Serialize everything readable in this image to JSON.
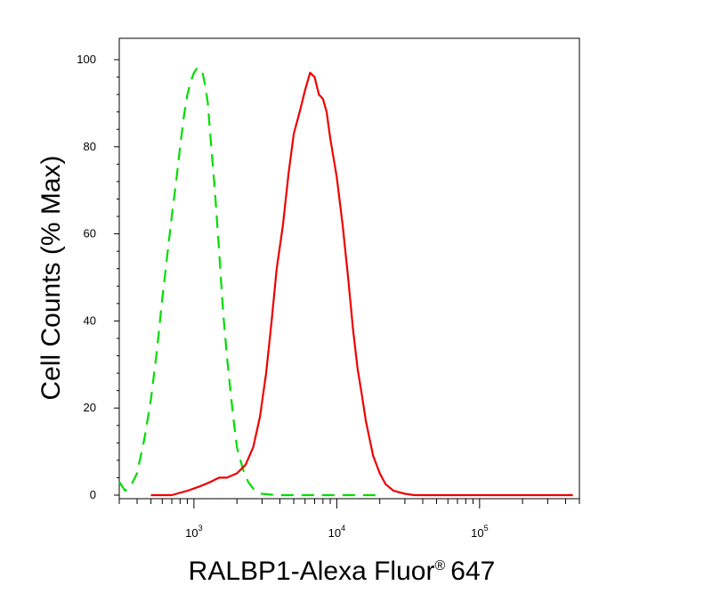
{
  "chart_data": {
    "type": "line",
    "title": "",
    "xlabel": "RALBP1-Alexa Fluor",
    "xlabel_mark": "®",
    "xlabel_suffix": "647",
    "ylabel": "Cell Counts (% Max)",
    "x_scale": "log",
    "xlim": [
      300,
      500000
    ],
    "ylim": [
      0,
      100
    ],
    "grid": false,
    "x_ticks": [
      {
        "value": 1000,
        "base": "10",
        "exp": "3"
      },
      {
        "value": 10000,
        "base": "10",
        "exp": "4"
      },
      {
        "value": 100000,
        "base": "10",
        "exp": "5"
      }
    ],
    "y_ticks": [
      0,
      20,
      40,
      60,
      80,
      100
    ],
    "series": [
      {
        "color": "#00dd00",
        "dash": true,
        "x": [
          300,
          330,
          360,
          400,
          450,
          500,
          550,
          600,
          650,
          700,
          750,
          800,
          850,
          900,
          950,
          1000,
          1050,
          1100,
          1150,
          1200,
          1250,
          1300,
          1400,
          1500,
          1600,
          1700,
          1800,
          1900,
          2000,
          2200,
          2400,
          2600,
          2800,
          3000,
          3500,
          4000,
          6000,
          10000,
          20000
        ],
        "values": [
          3,
          1,
          2,
          5,
          13,
          22,
          33,
          45,
          55,
          64,
          72,
          80,
          87,
          92,
          95,
          97,
          98,
          98,
          97,
          94,
          90,
          83,
          70,
          56,
          42,
          32,
          24,
          17,
          11,
          6,
          3,
          1.5,
          0.6,
          0.3,
          0.1,
          0,
          0,
          0,
          0
        ]
      },
      {
        "color": "#ee0000",
        "dash": false,
        "x": [
          500,
          700,
          900,
          1100,
          1300,
          1500,
          1700,
          2000,
          2300,
          2600,
          2900,
          3200,
          3500,
          3800,
          4200,
          4600,
          5000,
          5500,
          6000,
          6500,
          7000,
          7500,
          8000,
          8500,
          9000,
          10000,
          11000,
          12000,
          13000,
          14000,
          15000,
          16000,
          18000,
          20000,
          22000,
          25000,
          30000,
          35000,
          50000,
          100000,
          200000,
          450000
        ],
        "values": [
          0,
          0,
          1,
          2,
          3,
          4,
          4,
          5,
          7,
          11,
          18,
          28,
          40,
          52,
          62,
          74,
          83,
          88,
          93,
          97,
          96,
          92,
          91,
          88,
          82,
          73,
          62,
          50,
          38,
          29,
          23,
          17,
          9,
          5,
          2.5,
          1,
          0.3,
          0,
          0,
          0,
          0,
          0
        ]
      }
    ]
  }
}
